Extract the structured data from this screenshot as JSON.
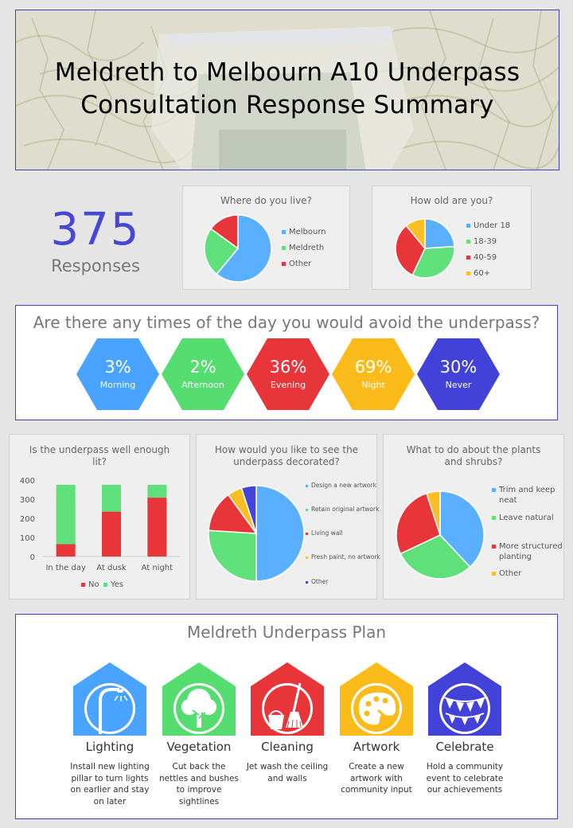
{
  "header": {
    "title_line1": "Meldreth to Melbourn A10 Underpass",
    "title_line2": "Consultation Response Summary"
  },
  "responses": {
    "count": "375",
    "label": "Responses"
  },
  "charts": {
    "live": {
      "title": "Where do you live?",
      "legend": [
        "Melbourn",
        "Meldreth",
        "Other"
      ]
    },
    "age": {
      "title": "How old are you?",
      "legend": [
        "Under 18",
        "18-39",
        "40-59",
        "60+"
      ]
    },
    "lit": {
      "title_line1": "Is the underpass well enough",
      "title_line2": "lit?",
      "legend": [
        "No",
        "Yes"
      ]
    },
    "decor": {
      "title_line1": "How would you like to see the",
      "title_line2": "underpass decorated?",
      "legend": [
        "Design a new artwork",
        "Retain original artwork",
        "Living wall",
        "Fresh paint, no artwork",
        "Other"
      ]
    },
    "plants": {
      "title_line1": "What to do about the plants",
      "title_line2": "and shrubs?",
      "legend": [
        "Trim and keep",
        "neat",
        "Leave natural",
        "More structured",
        "planting",
        "Other"
      ]
    }
  },
  "chart_data": [
    {
      "type": "pie",
      "title": "Where do you live?",
      "labels": [
        "Melbourn",
        "Meldreth",
        "Other"
      ],
      "values": [
        61,
        24,
        15
      ],
      "colors": [
        "#5aafff",
        "#5fe07a",
        "#e8353a"
      ]
    },
    {
      "type": "pie",
      "title": "How old are you?",
      "labels": [
        "Under 18",
        "18-39",
        "40-59",
        "60+"
      ],
      "values": [
        24,
        33,
        32,
        11
      ],
      "colors": [
        "#5aafff",
        "#5fe07a",
        "#e8353a",
        "#fbbf24"
      ]
    },
    {
      "type": "bar",
      "stacked": true,
      "title": "Is the underpass well enough lit?",
      "categories": [
        "In the day",
        "At dusk",
        "At night"
      ],
      "series": [
        {
          "name": "No",
          "values": [
            65,
            235,
            308
          ],
          "color": "#e8353a"
        },
        {
          "name": "Yes",
          "values": [
            310,
            140,
            67
          ],
          "color": "#5fe07a"
        }
      ],
      "ylim": [
        0,
        400
      ],
      "yticks": [
        0,
        100,
        200,
        300,
        400
      ],
      "legend": "bottom"
    },
    {
      "type": "pie",
      "title": "How would you like to see the underpass decorated?",
      "labels": [
        "Design a new artwork",
        "Retain original artwork",
        "Living wall",
        "Fresh paint, no artwork",
        "Other"
      ],
      "values": [
        50,
        26,
        14,
        5,
        5
      ],
      "colors": [
        "#5aafff",
        "#5fe07a",
        "#e8353a",
        "#fbbf24",
        "#4444dd"
      ]
    },
    {
      "type": "pie",
      "title": "What to do about the plants and shrubs?",
      "labels": [
        "Trim and keep neat",
        "Leave natural",
        "More structured planting",
        "Other"
      ],
      "values": [
        38,
        30,
        27,
        5
      ],
      "colors": [
        "#5aafff",
        "#5fe07a",
        "#e8353a",
        "#fbbf24"
      ]
    }
  ],
  "avoid": {
    "title": "Are there any times of the day you would avoid the underpass?",
    "items": [
      {
        "pct": "3%",
        "label": "Morning",
        "color": "#4aa3ff"
      },
      {
        "pct": "2%",
        "label": "Afternoon",
        "color": "#55dd70"
      },
      {
        "pct": "36%",
        "label": "Evening",
        "color": "#e8353a"
      },
      {
        "pct": "69%",
        "label": "Night",
        "color": "#fbbc1b"
      },
      {
        "pct": "30%",
        "label": "Never",
        "color": "#4242d8"
      }
    ]
  },
  "plan": {
    "title": "Meldreth Underpass Plan",
    "items": [
      {
        "icon": "street-lamp-icon",
        "title": "Lighting",
        "desc": [
          "Install new lighting",
          "pillar to turn lights",
          "on earlier and stay",
          "on later"
        ],
        "color": "#4aa3ff"
      },
      {
        "icon": "tree-icon",
        "title": "Vegetation",
        "desc": [
          "Cut back the",
          "nettles and bushes",
          "to improve",
          "sightlines"
        ],
        "color": "#55dd70"
      },
      {
        "icon": "mop-bucket-icon",
        "title": "Cleaning",
        "desc": [
          "Jet wash the ceiling",
          "and walls"
        ],
        "color": "#e8353a"
      },
      {
        "icon": "paint-palette-icon",
        "title": "Artwork",
        "desc": [
          "Create a new",
          "artwork with",
          "community input"
        ],
        "color": "#fbbc1b"
      },
      {
        "icon": "bunting-icon",
        "title": "Celebrate",
        "desc": [
          "Hold a community",
          "event to celebrate",
          "our achievements"
        ],
        "color": "#4242d8"
      }
    ]
  }
}
